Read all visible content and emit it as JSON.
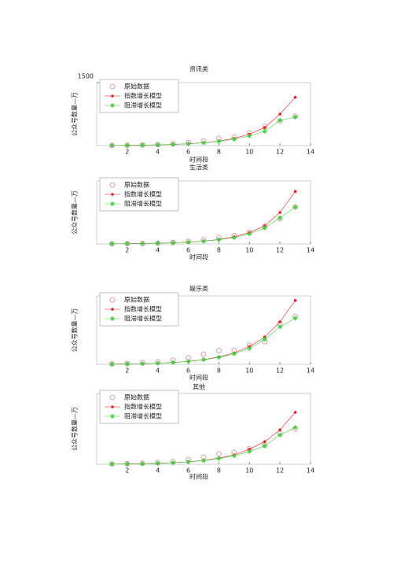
{
  "chart_data": [
    {
      "type": "line",
      "title": "资讯类",
      "xlabel": "时间段",
      "ylabel": "公众号数量—万",
      "x": [
        1,
        2,
        3,
        4,
        5,
        6,
        7,
        8,
        9,
        10,
        11,
        12,
        13
      ],
      "xlim": [
        0,
        14
      ],
      "xticks": [
        2,
        4,
        6,
        8,
        10,
        12,
        14
      ],
      "ylim": [
        0,
        1500
      ],
      "yticks": [
        1500
      ],
      "legend": "upper left",
      "series": [
        {
          "name": "原始数据",
          "color": "#d9a0b0",
          "marker": "circle-open",
          "line": false,
          "values": [
            5,
            8,
            15,
            25,
            40,
            70,
            110,
            170,
            200,
            300,
            450,
            580,
            700
          ]
        },
        {
          "name": "指数增长模型",
          "color": "#e02020",
          "marker": "dot",
          "line": true,
          "values": [
            4,
            7,
            11,
            17,
            27,
            43,
            68,
            108,
            170,
            270,
            430,
            750,
            1150
          ]
        },
        {
          "name": "阻滞增长模型",
          "color": "#40d040",
          "marker": "star",
          "line": true,
          "values": [
            4,
            7,
            11,
            17,
            27,
            42,
            65,
            100,
            150,
            230,
            340,
            600,
            680
          ]
        }
      ]
    },
    {
      "type": "line",
      "title": "生活类",
      "xlabel": "时间段",
      "ylabel": "公众号数量—万",
      "x": [
        1,
        2,
        3,
        4,
        5,
        6,
        7,
        8,
        9,
        10,
        11,
        12,
        13
      ],
      "xlim": [
        0,
        14
      ],
      "xticks": [
        2,
        4,
        6,
        8,
        10,
        12,
        14
      ],
      "ylim": [
        0,
        1500
      ],
      "legend": "upper left",
      "series": [
        {
          "name": "原始数据",
          "color": "#d9a0b0",
          "marker": "circle-open",
          "line": false,
          "values": [
            3,
            6,
            10,
            20,
            35,
            60,
            100,
            150,
            200,
            280,
            420,
            600,
            880
          ]
        },
        {
          "name": "指数增长模型",
          "color": "#e02020",
          "marker": "dot",
          "line": true,
          "values": [
            4,
            7,
            11,
            17,
            27,
            43,
            68,
            108,
            170,
            270,
            430,
            750,
            1250
          ]
        },
        {
          "name": "阻滞增长模型",
          "color": "#40d040",
          "marker": "star",
          "line": true,
          "values": [
            4,
            7,
            11,
            17,
            27,
            42,
            65,
            100,
            150,
            240,
            380,
            620,
            880
          ]
        }
      ]
    },
    {
      "type": "line",
      "title": "娱乐类",
      "xlabel": "时间段",
      "ylabel": "公众号数量—万",
      "x": [
        1,
        2,
        3,
        4,
        5,
        6,
        7,
        8,
        9,
        10,
        11,
        12,
        13
      ],
      "xlim": [
        0,
        14
      ],
      "xticks": [
        2,
        4,
        6,
        8,
        10,
        12,
        14
      ],
      "ylim": [
        0,
        1500
      ],
      "legend": "upper left",
      "series": [
        {
          "name": "原始数据",
          "color": "#d9a0b0",
          "marker": "circle-open",
          "line": false,
          "values": [
            10,
            20,
            35,
            55,
            90,
            140,
            220,
            300,
            300,
            420,
            500,
            900,
            1050
          ]
        },
        {
          "name": "指数增长模型",
          "color": "#e02020",
          "marker": "dot",
          "line": true,
          "values": [
            5,
            9,
            15,
            25,
            40,
            65,
            105,
            160,
            250,
            390,
            600,
            930,
            1400
          ]
        },
        {
          "name": "阻滞增长模型",
          "color": "#40d040",
          "marker": "star",
          "line": true,
          "values": [
            5,
            9,
            15,
            25,
            40,
            63,
            100,
            150,
            230,
            350,
            550,
            820,
            1010
          ]
        }
      ]
    },
    {
      "type": "line",
      "title": "其他",
      "xlabel": "时间段",
      "ylabel": "公众号数量—万",
      "x": [
        1,
        2,
        3,
        4,
        5,
        6,
        7,
        8,
        9,
        10,
        11,
        12,
        13
      ],
      "xlim": [
        0,
        14
      ],
      "xticks": [
        2,
        4,
        6,
        8,
        10,
        12,
        14
      ],
      "ylim": [
        0,
        1500
      ],
      "legend": "upper left",
      "series": [
        {
          "name": "原始数据",
          "color": "#d9a0b0",
          "marker": "circle-open",
          "line": false,
          "values": [
            5,
            10,
            20,
            35,
            60,
            100,
            150,
            220,
            250,
            330,
            400,
            650,
            750
          ]
        },
        {
          "name": "指数增长模型",
          "color": "#e02020",
          "marker": "dot",
          "line": true,
          "values": [
            4,
            7,
            12,
            20,
            32,
            52,
            82,
            130,
            200,
            320,
            480,
            730,
            1100
          ]
        },
        {
          "name": "阻滞增长模型",
          "color": "#40d040",
          "marker": "star",
          "line": true,
          "values": [
            4,
            7,
            12,
            20,
            32,
            50,
            78,
            120,
            180,
            270,
            390,
            620,
            780
          ]
        }
      ]
    }
  ]
}
